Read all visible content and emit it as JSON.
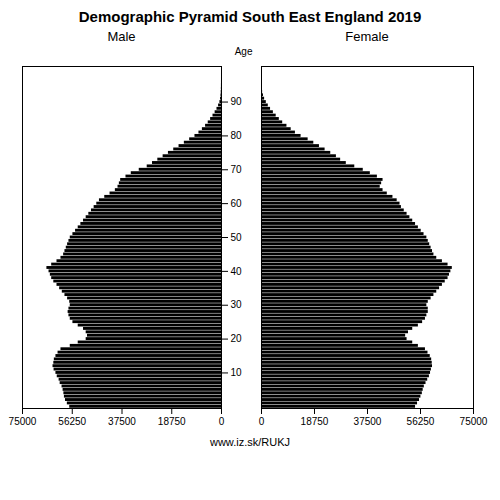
{
  "chart_data": {
    "type": "bar",
    "orientation": "horizontal",
    "title": "Demographic Pyramid South East England 2019",
    "ylabel": "Age",
    "caption": "www.iz.sk/RUKJ",
    "y": [
      0,
      1,
      2,
      3,
      4,
      5,
      6,
      7,
      8,
      9,
      10,
      11,
      12,
      13,
      14,
      15,
      16,
      17,
      18,
      19,
      20,
      21,
      22,
      23,
      24,
      25,
      26,
      27,
      28,
      29,
      30,
      31,
      32,
      33,
      34,
      35,
      36,
      37,
      38,
      39,
      40,
      41,
      42,
      43,
      44,
      45,
      46,
      47,
      48,
      49,
      50,
      51,
      52,
      53,
      54,
      55,
      56,
      57,
      58,
      59,
      60,
      61,
      62,
      63,
      64,
      65,
      66,
      67,
      68,
      69,
      70,
      71,
      72,
      73,
      74,
      75,
      76,
      77,
      78,
      79,
      80,
      81,
      82,
      83,
      84,
      85,
      86,
      87,
      88,
      89,
      90,
      91,
      92,
      93,
      94,
      95,
      96,
      97,
      98,
      99,
      100
    ],
    "ylim": [
      -0.5,
      100.5
    ],
    "yticks": [
      10,
      20,
      30,
      40,
      50,
      60,
      70,
      80,
      90
    ],
    "xlim": [
      0,
      75000
    ],
    "xticks": [
      0,
      18750,
      37500,
      56250,
      75000
    ],
    "series": [
      {
        "name": "Male",
        "values": [
          57200,
          58100,
          58800,
          59200,
          59400,
          59700,
          60100,
          60800,
          61200,
          61900,
          62400,
          63100,
          63500,
          63200,
          63000,
          62400,
          61600,
          60500,
          57000,
          54000,
          51000,
          50500,
          51000,
          52000,
          54000,
          56000,
          57000,
          57500,
          57800,
          57500,
          57000,
          57200,
          58000,
          59000,
          60000,
          61000,
          62000,
          63200,
          64000,
          64500,
          65000,
          65800,
          64000,
          62000,
          60500,
          59500,
          59000,
          58500,
          58000,
          57500,
          57000,
          56000,
          55000,
          54000,
          53000,
          52000,
          51000,
          50000,
          49000,
          48000,
          47000,
          46000,
          44000,
          42000,
          40000,
          39000,
          38500,
          38000,
          36000,
          34000,
          31000,
          28000,
          26000,
          24000,
          22000,
          20000,
          18000,
          16000,
          14000,
          12000,
          10000,
          8500,
          7200,
          6000,
          5000,
          4100,
          3200,
          2400,
          1700,
          1100,
          600,
          350,
          200,
          110,
          60,
          30,
          15,
          8,
          4,
          2,
          1
        ]
      },
      {
        "name": "Female",
        "values": [
          54500,
          55200,
          55900,
          56400,
          56900,
          57200,
          57600,
          58200,
          58800,
          59400,
          59800,
          60100,
          60500,
          60400,
          60200,
          59700,
          58900,
          58000,
          55500,
          53500,
          51500,
          51000,
          52000,
          53500,
          55500,
          57000,
          58000,
          58500,
          59000,
          59000,
          58500,
          59000,
          60000,
          61000,
          62000,
          63000,
          64000,
          65000,
          66000,
          66500,
          67000,
          67500,
          66000,
          64000,
          62000,
          61000,
          60500,
          60000,
          59500,
          59000,
          58500,
          57500,
          56500,
          55500,
          54500,
          53500,
          52500,
          51500,
          50500,
          49500,
          49000,
          48000,
          46500,
          44500,
          43000,
          42000,
          42500,
          43000,
          41000,
          38500,
          36000,
          33000,
          30000,
          28000,
          26500,
          24500,
          22500,
          20500,
          18500,
          16500,
          14000,
          12000,
          10500,
          9000,
          7500,
          6300,
          5200,
          4200,
          3200,
          2400,
          1700,
          1100,
          700,
          400,
          220,
          110,
          55,
          25,
          12,
          5,
          2
        ]
      }
    ]
  }
}
